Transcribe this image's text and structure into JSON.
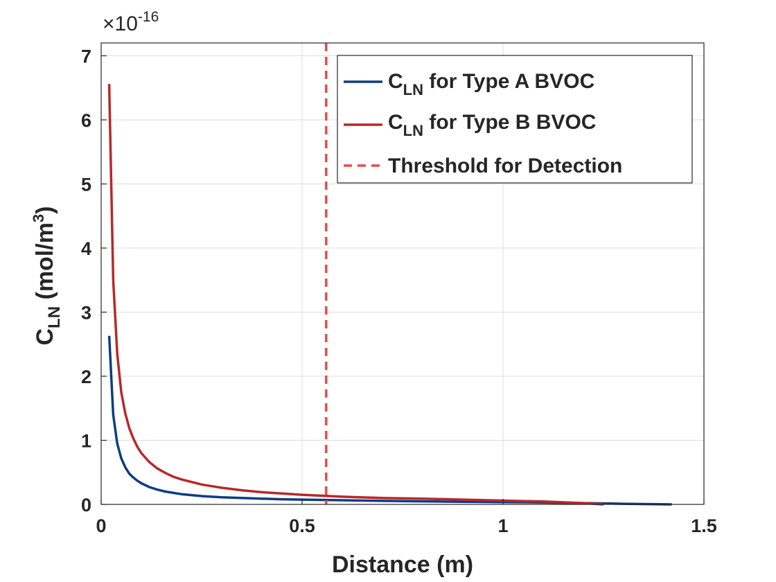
{
  "chart_data": {
    "type": "line",
    "xlabel": "Distance (m)",
    "ylabel": {
      "base": "C",
      "sub": "LN",
      "unit_prefix": " (mol/m",
      "unit_sup": "3",
      "unit_suffix": ")"
    },
    "y_exponent": {
      "base": "×10",
      "power": "-16"
    },
    "xlim": [
      0,
      1.5
    ],
    "ylim": [
      0,
      7.2
    ],
    "x_ticks": [
      0,
      0.5,
      1,
      1.5
    ],
    "x_tick_labels": [
      "0",
      "0.5",
      "1",
      "1.5"
    ],
    "y_ticks": [
      0,
      1,
      2,
      3,
      4,
      5,
      6,
      7
    ],
    "y_tick_labels": [
      "0",
      "1",
      "2",
      "3",
      "4",
      "5",
      "6",
      "7"
    ],
    "grid": true,
    "legend_position": "top-right",
    "series": [
      {
        "label": {
          "base": "C",
          "sub": "LN",
          "rest": " for Type A BVOC"
        },
        "color": "#0f3c82",
        "x": [
          0.02,
          0.03,
          0.04,
          0.05,
          0.06,
          0.07,
          0.08,
          0.09,
          0.1,
          0.12,
          0.14,
          0.16,
          0.18,
          0.2,
          0.25,
          0.3,
          0.35,
          0.4,
          0.45,
          0.5,
          0.6,
          0.7,
          0.8,
          0.9,
          1.0,
          1.1,
          1.2,
          1.3,
          1.42
        ],
        "y": [
          2.63,
          1.4,
          0.95,
          0.72,
          0.58,
          0.48,
          0.42,
          0.37,
          0.33,
          0.27,
          0.23,
          0.2,
          0.18,
          0.16,
          0.13,
          0.11,
          0.1,
          0.09,
          0.08,
          0.075,
          0.065,
          0.055,
          0.048,
          0.04,
          0.035,
          0.03,
          0.02,
          0.01,
          0.0
        ]
      },
      {
        "label": {
          "base": "C",
          "sub": "LN",
          "rest": " for Type B BVOC"
        },
        "color": "#b8282a",
        "x": [
          0.02,
          0.03,
          0.04,
          0.05,
          0.06,
          0.07,
          0.08,
          0.09,
          0.1,
          0.12,
          0.14,
          0.16,
          0.18,
          0.2,
          0.25,
          0.3,
          0.35,
          0.4,
          0.45,
          0.5,
          0.6,
          0.7,
          0.8,
          0.9,
          1.0,
          1.1,
          1.2,
          1.25
        ],
        "y": [
          6.56,
          3.5,
          2.35,
          1.75,
          1.42,
          1.19,
          1.03,
          0.9,
          0.8,
          0.66,
          0.56,
          0.49,
          0.43,
          0.39,
          0.31,
          0.26,
          0.22,
          0.19,
          0.17,
          0.15,
          0.12,
          0.1,
          0.09,
          0.075,
          0.06,
          0.045,
          0.02,
          0.0
        ]
      }
    ],
    "threshold": {
      "label": "Threshold for Detection",
      "x": 0.56,
      "color": "#f04848"
    }
  }
}
